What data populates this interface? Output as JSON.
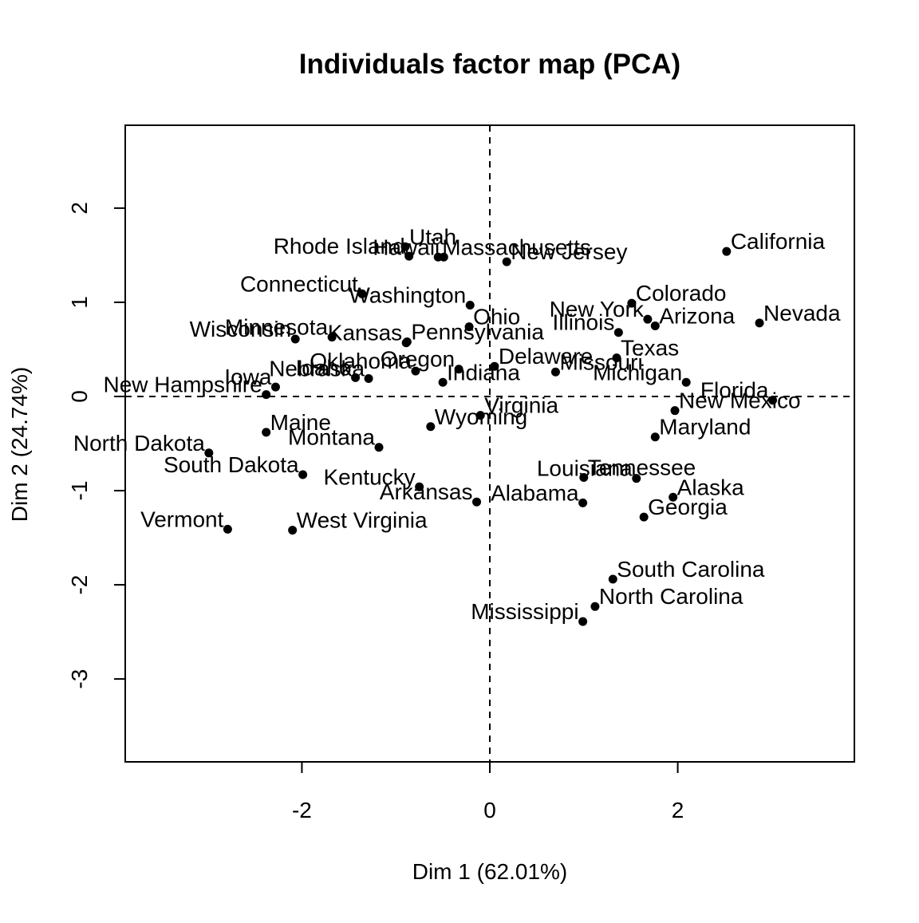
{
  "chart_data": {
    "type": "scatter",
    "title": "Individuals factor map (PCA)",
    "xlabel": "Dim 1 (62.01%)",
    "ylabel": "Dim 2 (24.74%)",
    "xlim": [
      -3.88,
      3.88
    ],
    "ylim": [
      -3.88,
      2.88
    ],
    "xticks": [
      -2,
      0,
      2
    ],
    "yticks": [
      -3,
      -2,
      -1,
      0,
      1,
      2
    ],
    "xtick_labels": [
      "-2",
      "0",
      "2"
    ],
    "ytick_labels": [
      "-3",
      "-2",
      "-1",
      "0",
      "1",
      "2"
    ],
    "reference_lines": {
      "x": 0,
      "y": 0,
      "style": "dashed"
    },
    "grid": false,
    "point_color": "#000000",
    "points": [
      {
        "label": "Alabama",
        "x": 0.99,
        "y": -1.13,
        "pos": "left"
      },
      {
        "label": "Alaska",
        "x": 1.95,
        "y": -1.07,
        "pos": "right"
      },
      {
        "label": "Arizona",
        "x": 1.76,
        "y": 0.75,
        "pos": "right"
      },
      {
        "label": "Arkansas",
        "x": -0.14,
        "y": -1.12,
        "pos": "left"
      },
      {
        "label": "California",
        "x": 2.52,
        "y": 1.54,
        "pos": "right"
      },
      {
        "label": "Colorado",
        "x": 1.51,
        "y": 0.99,
        "pos": "right"
      },
      {
        "label": "Connecticut",
        "x": -1.36,
        "y": 1.09,
        "pos": "left"
      },
      {
        "label": "Delaware",
        "x": 0.05,
        "y": 0.32,
        "pos": "right"
      },
      {
        "label": "Florida",
        "x": 3.01,
        "y": -0.04,
        "pos": "left"
      },
      {
        "label": "Georgia",
        "x": 1.64,
        "y": -1.28,
        "pos": "right"
      },
      {
        "label": "Hawaii",
        "x": -0.49,
        "y": 1.48,
        "pos": "left"
      },
      {
        "label": "Idaho",
        "x": -1.43,
        "y": 0.2,
        "pos": "left"
      },
      {
        "label": "Illinois",
        "x": 1.37,
        "y": 0.68,
        "pos": "left"
      },
      {
        "label": "Indiana",
        "x": -0.5,
        "y": 0.15,
        "pos": "right"
      },
      {
        "label": "Iowa",
        "x": -2.28,
        "y": 0.1,
        "pos": "left"
      },
      {
        "label": "Kansas",
        "x": -0.89,
        "y": 0.57,
        "pos": "left"
      },
      {
        "label": "Kentucky",
        "x": -0.75,
        "y": -0.96,
        "pos": "left"
      },
      {
        "label": "Louisiana",
        "x": 1.56,
        "y": -0.87,
        "pos": "left"
      },
      {
        "label": "Maine",
        "x": -2.38,
        "y": -0.38,
        "pos": "right"
      },
      {
        "label": "Maryland",
        "x": 1.76,
        "y": -0.43,
        "pos": "right"
      },
      {
        "label": "Massachusetts",
        "x": -0.55,
        "y": 1.48,
        "pos": "right"
      },
      {
        "label": "Michigan",
        "x": 2.09,
        "y": 0.15,
        "pos": "left"
      },
      {
        "label": "Minnesota",
        "x": -1.68,
        "y": 0.63,
        "pos": "left"
      },
      {
        "label": "Mississippi",
        "x": 0.99,
        "y": -2.39,
        "pos": "left"
      },
      {
        "label": "Missouri",
        "x": 0.7,
        "y": 0.26,
        "pos": "right"
      },
      {
        "label": "Montana",
        "x": -1.18,
        "y": -0.54,
        "pos": "left"
      },
      {
        "label": "Nebraska",
        "x": -1.29,
        "y": 0.19,
        "pos": "left"
      },
      {
        "label": "Nevada",
        "x": 2.87,
        "y": 0.78,
        "pos": "right"
      },
      {
        "label": "New Hampshire",
        "x": -2.38,
        "y": 0.02,
        "pos": "left"
      },
      {
        "label": "New Jersey",
        "x": 0.18,
        "y": 1.43,
        "pos": "right"
      },
      {
        "label": "New Mexico",
        "x": 1.97,
        "y": -0.15,
        "pos": "right"
      },
      {
        "label": "New York",
        "x": 1.68,
        "y": 0.82,
        "pos": "left"
      },
      {
        "label": "North Carolina",
        "x": 1.12,
        "y": -2.23,
        "pos": "right"
      },
      {
        "label": "North Dakota",
        "x": -2.99,
        "y": -0.6,
        "pos": "left"
      },
      {
        "label": "Ohio",
        "x": -0.22,
        "y": 0.74,
        "pos": "right"
      },
      {
        "label": "Oklahoma",
        "x": -0.79,
        "y": 0.27,
        "pos": "left"
      },
      {
        "label": "Oregon",
        "x": -0.33,
        "y": 0.29,
        "pos": "left"
      },
      {
        "label": "Pennsylvania",
        "x": -0.88,
        "y": 0.58,
        "pos": "right"
      },
      {
        "label": "Rhode Island",
        "x": -0.86,
        "y": 1.49,
        "pos": "left"
      },
      {
        "label": "South Carolina",
        "x": 1.31,
        "y": -1.94,
        "pos": "right"
      },
      {
        "label": "South Dakota",
        "x": -1.99,
        "y": -0.83,
        "pos": "left"
      },
      {
        "label": "Tennessee",
        "x": 1.0,
        "y": -0.86,
        "pos": "right"
      },
      {
        "label": "Texas",
        "x": 1.35,
        "y": 0.41,
        "pos": "right"
      },
      {
        "label": "Utah",
        "x": -0.9,
        "y": 1.59,
        "pos": "right"
      },
      {
        "label": "Vermont",
        "x": -2.79,
        "y": -1.41,
        "pos": "left"
      },
      {
        "label": "Virginia",
        "x": -0.1,
        "y": -0.2,
        "pos": "right"
      },
      {
        "label": "Washington",
        "x": -0.21,
        "y": 0.97,
        "pos": "left"
      },
      {
        "label": "West Virginia",
        "x": -2.1,
        "y": -1.42,
        "pos": "right"
      },
      {
        "label": "Wisconsin",
        "x": -2.07,
        "y": 0.61,
        "pos": "left"
      },
      {
        "label": "Wyoming",
        "x": -0.63,
        "y": -0.32,
        "pos": "right"
      }
    ]
  }
}
